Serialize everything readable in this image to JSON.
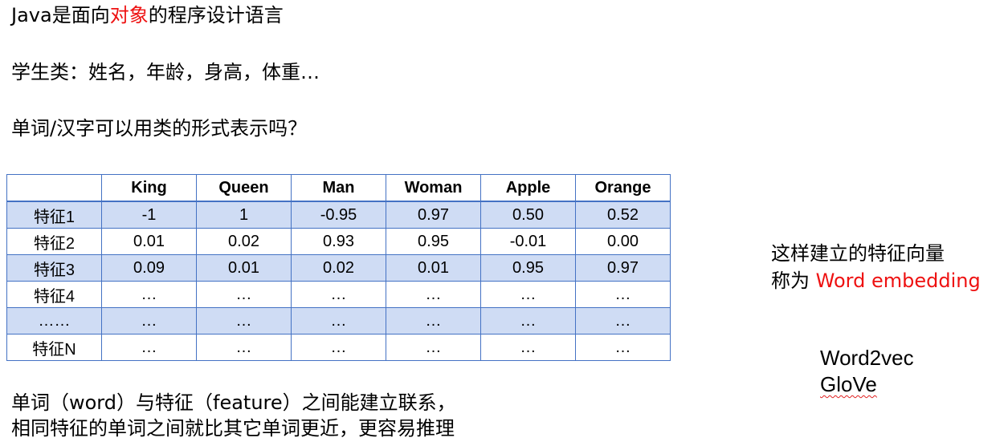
{
  "intro": {
    "line1_part1": "Java是面向",
    "line1_highlight": "对象",
    "line1_part2": "的程序设计语言",
    "line2": "学生类：姓名，年龄，身高，体重…",
    "line3": "单词/汉字可以用类的形式表示吗？"
  },
  "table": {
    "columns": [
      "King",
      "Queen",
      "Man",
      "Woman",
      "Apple",
      "Orange"
    ],
    "rows": [
      {
        "label": "特征1",
        "values": [
          "-1",
          "1",
          "-0.95",
          "0.97",
          "0.50",
          "0.52"
        ]
      },
      {
        "label": "特征2",
        "values": [
          "0.01",
          "0.02",
          "0.93",
          "0.95",
          "-0.01",
          "0.00"
        ]
      },
      {
        "label": "特征3",
        "values": [
          "0.09",
          "0.01",
          "0.02",
          "0.01",
          "0.95",
          "0.97"
        ]
      },
      {
        "label": "特征4",
        "values": [
          "…",
          "…",
          "…",
          "…",
          "…",
          "…"
        ]
      },
      {
        "label": "……",
        "values": [
          "…",
          "…",
          "…",
          "…",
          "…",
          "…"
        ]
      },
      {
        "label": "特征N",
        "values": [
          "…",
          "…",
          "…",
          "…",
          "…",
          "…"
        ]
      }
    ]
  },
  "side": {
    "line1": "这样建立的特征向量",
    "line2_part1": "称为 ",
    "line2_highlight": "Word embedding",
    "method1": "Word2vec",
    "method2": "GloVe"
  },
  "bottom": {
    "line1": "单词（word）与特征（feature）之间能建立联系，",
    "line2": "相同特征的单词之间就比其它单词更近，更容易推理"
  },
  "colors": {
    "highlight": "#ee1111",
    "table_border": "#4472c4",
    "table_band": "#cfdcf4"
  }
}
